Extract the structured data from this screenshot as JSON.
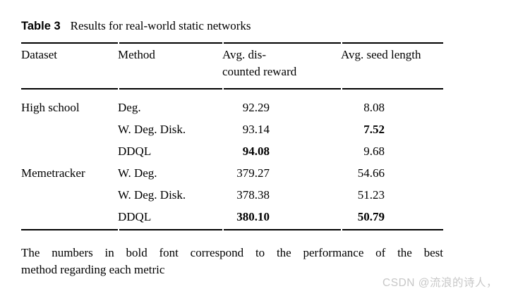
{
  "title": {
    "label": "Table 3",
    "caption": "Results for real-world static networks"
  },
  "table": {
    "headers": {
      "dataset": "Dataset",
      "method": "Method",
      "reward_line1": "Avg. dis-",
      "reward_line2": "counted reward",
      "seed": "Avg. seed length"
    },
    "rows": [
      {
        "dataset": "High school",
        "method": "Deg.",
        "reward": "92.29",
        "seed": "8.08",
        "reward_bold": false,
        "seed_bold": false
      },
      {
        "dataset": "",
        "method": "W. Deg. Disk.",
        "reward": "93.14",
        "seed": "7.52",
        "reward_bold": false,
        "seed_bold": true
      },
      {
        "dataset": "",
        "method": "DDQL",
        "reward": "94.08",
        "seed": "9.68",
        "reward_bold": true,
        "seed_bold": false
      },
      {
        "dataset": "Memetracker",
        "method": "W. Deg.",
        "reward": "379.27",
        "seed": "54.66",
        "reward_bold": false,
        "seed_bold": false
      },
      {
        "dataset": "",
        "method": "W. Deg. Disk.",
        "reward": "378.38",
        "seed": "51.23",
        "reward_bold": false,
        "seed_bold": false
      },
      {
        "dataset": "",
        "method": "DDQL",
        "reward": "380.10",
        "seed": "50.79",
        "reward_bold": true,
        "seed_bold": true
      }
    ]
  },
  "footnote": {
    "line1": "The numbers in bold font correspond to the performance of the best",
    "line2": "method regarding each metric"
  },
  "watermark": {
    "text": "CSDN @流浪的诗人，",
    "color": "#c7c7c7"
  },
  "colors": {
    "text": "#000000",
    "rule": "#000000",
    "background": "#ffffff"
  },
  "chart_data": {
    "type": "table",
    "title": "Table 3  Results for real-world static networks",
    "columns": [
      "Dataset",
      "Method",
      "Avg. discounted reward",
      "Avg. seed length"
    ],
    "rows": [
      [
        "High school",
        "Deg.",
        92.29,
        8.08
      ],
      [
        "High school",
        "W. Deg. Disk.",
        93.14,
        7.52
      ],
      [
        "High school",
        "DDQL",
        94.08,
        9.68
      ],
      [
        "Memetracker",
        "W. Deg.",
        379.27,
        54.66
      ],
      [
        "Memetracker",
        "W. Deg. Disk.",
        378.38,
        51.23
      ],
      [
        "Memetracker",
        "DDQL",
        380.1,
        50.79
      ]
    ],
    "bold_best": {
      "High school": {
        "reward": 94.08,
        "seed": 7.52
      },
      "Memetracker": {
        "reward": 380.1,
        "seed": 50.79
      }
    },
    "note": "The numbers in bold font correspond to the performance of the best method regarding each metric"
  }
}
